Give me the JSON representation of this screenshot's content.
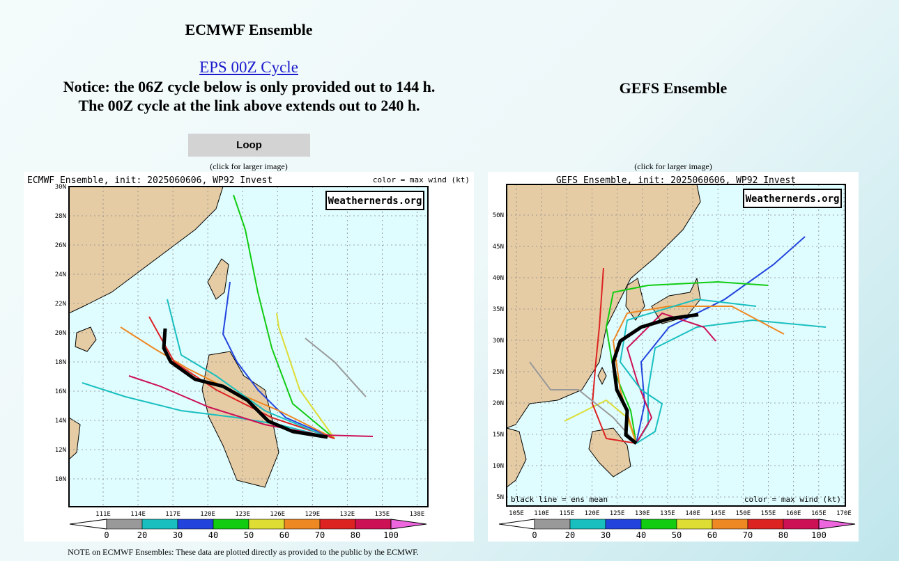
{
  "left": {
    "title": "ECMWF Ensemble",
    "link": "EPS 00Z Cycle",
    "notice": [
      "Notice: the 06Z cycle below is only provided out to 144 h.",
      "The 00Z cycle at the link above extends out to 240 h."
    ],
    "button": "Loop",
    "caption": "(click for larger image)",
    "map": {
      "header": "ECMWF Ensemble, init: 2025060606, WP92 Invest",
      "legend_label": "color = max wind (kt)",
      "watermark": "Weathernerds.org",
      "lat_labels": [
        "30N",
        "28N",
        "26N",
        "24N",
        "22N",
        "20N",
        "18N",
        "16N",
        "14N",
        "12N",
        "10N"
      ],
      "lon_labels": [
        "111E",
        "114E",
        "117E",
        "120E",
        "123E",
        "126E",
        "129E",
        "132E",
        "135E",
        "138E"
      ],
      "colorbar_labels": [
        "0",
        "20",
        "30",
        "40",
        "50",
        "60",
        "70",
        "80",
        "100"
      ]
    }
  },
  "right": {
    "title": "GEFS Ensemble",
    "caption": "(click for larger image)",
    "map": {
      "header": "GEFS Ensemble, init: 2025060606, WP92 Invest",
      "legend_label": "color = max wind (kt)",
      "mean_label": "black line = ens mean",
      "watermark": "Weathernerds.org",
      "lat_labels": [
        "50N",
        "45N",
        "40N",
        "35N",
        "30N",
        "25N",
        "20N",
        "15N",
        "10N",
        "5N"
      ],
      "lon_labels": [
        "105E",
        "110E",
        "115E",
        "120E",
        "125E",
        "130E",
        "135E",
        "140E",
        "145E",
        "150E",
        "155E",
        "160E",
        "165E",
        "170E"
      ],
      "colorbar_labels": [
        "0",
        "20",
        "30",
        "40",
        "50",
        "60",
        "70",
        "80",
        "100"
      ]
    }
  },
  "colorbar_colors": [
    "#ffffff",
    "#999999",
    "#19bfbf",
    "#2244dd",
    "#11cc11",
    "#dddd33",
    "#ee8822",
    "#dd2222",
    "#cc1155",
    "#ee66dd"
  ],
  "note": "NOTE on ECMWF Ensembles: These data are plotted directly as provided to the public by the ECMWF."
}
